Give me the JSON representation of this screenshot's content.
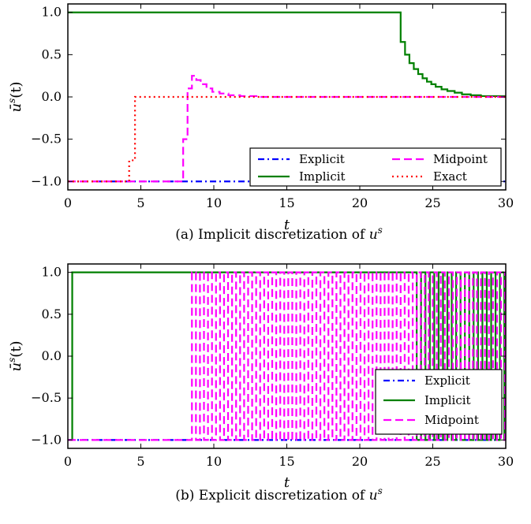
{
  "chart_data": [
    {
      "type": "line",
      "caption": "(a) Implicit discretization of u^s",
      "caption_text": "(a) Implicit discretization of ",
      "caption_var": "u",
      "caption_sup": "s",
      "xlabel": "t",
      "ylabel_main": "ū",
      "ylabel_sup": "s",
      "ylabel_arg": "(t)",
      "xlim": [
        0,
        30
      ],
      "ylim": [
        -1.1,
        1.1
      ],
      "xticks": [
        0,
        5,
        10,
        15,
        20,
        25,
        30
      ],
      "yticks": [
        -1.0,
        -0.5,
        0.0,
        0.5,
        1.0
      ],
      "ytick_labels": [
        "−1.0",
        "−0.5",
        "0.0",
        "0.5",
        "1.0"
      ],
      "grid": false,
      "legend_position": "lower-right",
      "legend_columns": 2,
      "series": [
        {
          "name": "Explicit",
          "color": "#0000ff",
          "dash": "dashdot",
          "x": [
            0,
            30
          ],
          "y": [
            -1,
            -1
          ]
        },
        {
          "name": "Implicit",
          "color": "#008000",
          "dash": "solid",
          "step": true,
          "x": [
            0,
            22.8,
            23.1,
            23.4,
            23.7,
            24.0,
            24.3,
            24.6,
            24.9,
            25.2,
            25.6,
            26.0,
            26.5,
            27.0,
            27.6,
            28.3,
            30
          ],
          "y": [
            1.0,
            0.65,
            0.5,
            0.4,
            0.33,
            0.27,
            0.22,
            0.18,
            0.15,
            0.12,
            0.09,
            0.07,
            0.05,
            0.03,
            0.02,
            0.01,
            0.0
          ]
        },
        {
          "name": "Midpoint",
          "color": "#ff00ff",
          "dash": "dashed",
          "step": true,
          "x": [
            0,
            7.9,
            8.2,
            8.5,
            8.8,
            9.1,
            9.5,
            9.9,
            10.4,
            11.0,
            11.8,
            13.0,
            30
          ],
          "y": [
            -1.0,
            -0.5,
            0.1,
            0.25,
            0.2,
            0.15,
            0.1,
            0.06,
            0.04,
            0.02,
            0.01,
            0.0,
            0.0
          ]
        },
        {
          "name": "Exact",
          "color": "#ff0000",
          "dash": "dotted",
          "step": true,
          "x": [
            0,
            4.2,
            4.6,
            30
          ],
          "y": [
            -1.0,
            -0.75,
            0.0,
            0.0
          ]
        }
      ]
    },
    {
      "type": "line",
      "caption": "(b) Explicit discretization of u^s",
      "caption_text": "(b) Explicit discretization of ",
      "caption_var": "u",
      "caption_sup": "s",
      "xlabel": "t",
      "ylabel_main": "ū",
      "ylabel_sup": "s",
      "ylabel_arg": "(t)",
      "xlim": [
        0,
        30
      ],
      "ylim": [
        -1.1,
        1.1
      ],
      "xticks": [
        0,
        5,
        10,
        15,
        20,
        25,
        30
      ],
      "yticks": [
        -1.0,
        -0.5,
        0.0,
        0.5,
        1.0
      ],
      "ytick_labels": [
        "−1.0",
        "−0.5",
        "0.0",
        "0.5",
        "1.0"
      ],
      "grid": false,
      "legend_position": "center-right",
      "legend_columns": 1,
      "series": [
        {
          "name": "Explicit",
          "color": "#0000ff",
          "dash": "dashdot",
          "x": [
            0,
            30
          ],
          "y": [
            -1,
            -1
          ]
        },
        {
          "name": "Implicit",
          "color": "#008000",
          "dash": "solid",
          "oscillating": true,
          "pre_x": [
            0,
            0.3
          ],
          "pre_y": [
            -1,
            -1
          ],
          "start": 0.3,
          "end": 30,
          "amplitude": 1.0,
          "period_segments": [
            {
              "from": 0.3,
              "to": 23.6,
              "level": 1.0
            },
            {
              "from": 23.6,
              "to": 30,
              "period": 0.6
            }
          ]
        },
        {
          "name": "Midpoint",
          "color": "#ff00ff",
          "dash": "dashed",
          "oscillating": true,
          "pre_x": [
            0,
            8.5
          ],
          "pre_y": [
            -1,
            -1
          ],
          "start": 8.5,
          "end": 30,
          "period": 0.55
        }
      ]
    }
  ]
}
